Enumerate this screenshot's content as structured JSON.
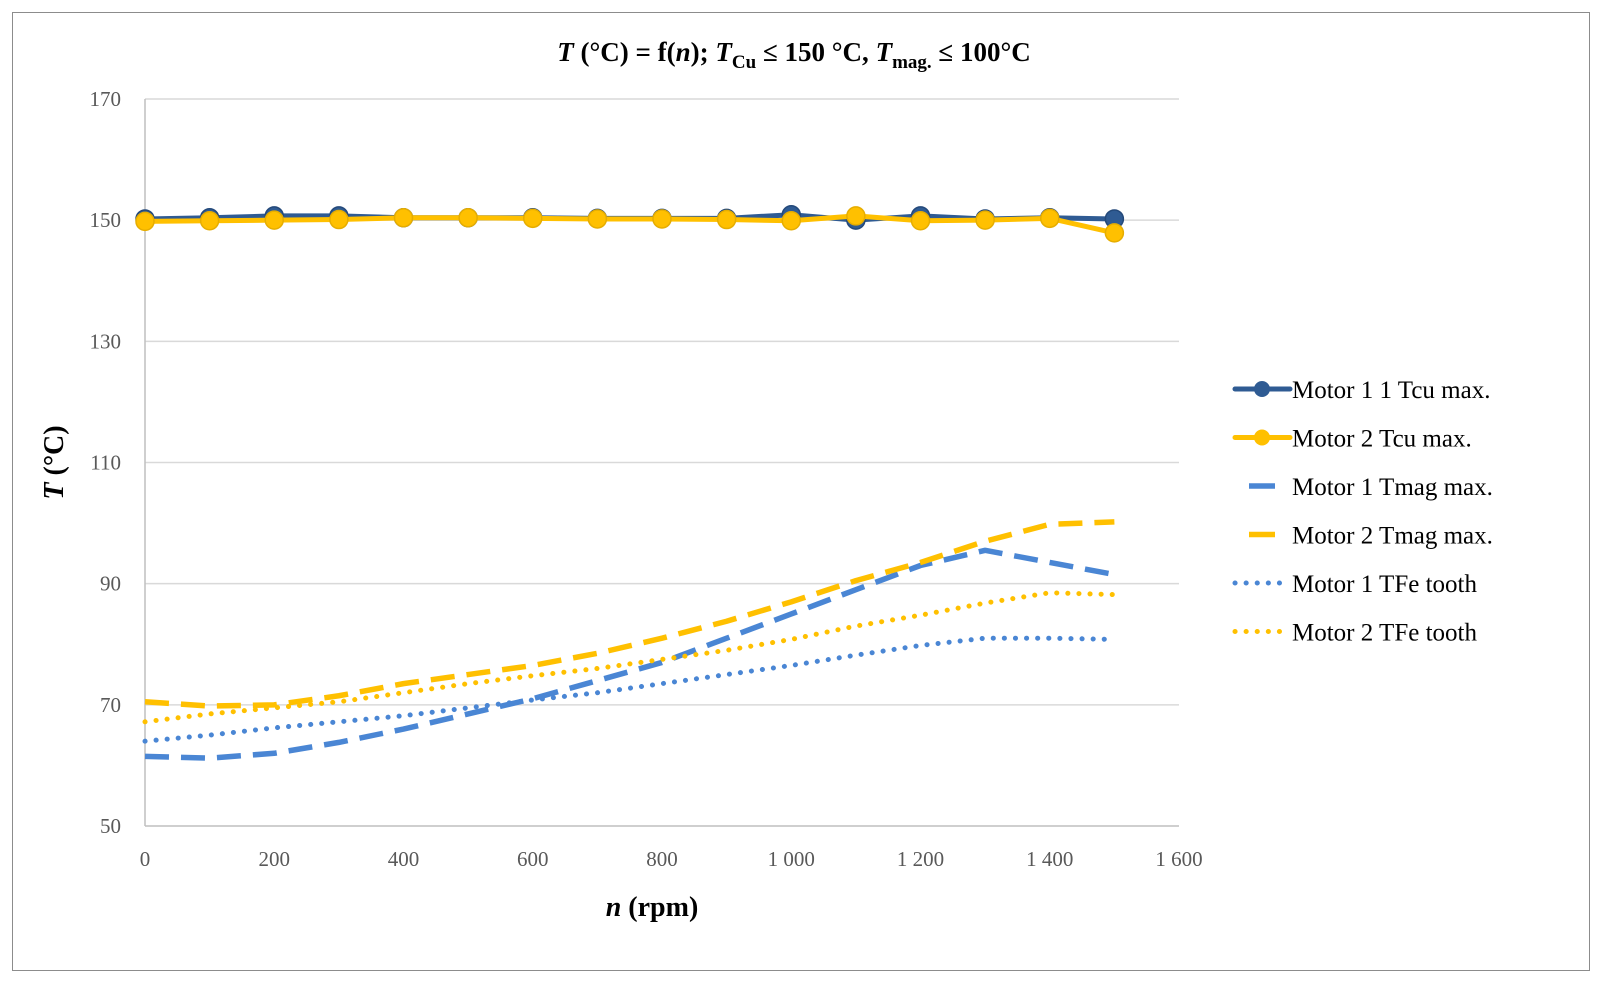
{
  "chart_data": {
    "type": "line",
    "title": {
      "parts": [
        {
          "text": "T",
          "italic": true,
          "sub": false
        },
        {
          "text": " (°C) = f(",
          "italic": false,
          "sub": false
        },
        {
          "text": "n",
          "italic": true,
          "sub": false
        },
        {
          "text": ");   ",
          "italic": false,
          "sub": false
        },
        {
          "text": "T",
          "italic": true,
          "sub": false
        },
        {
          "text": "Cu",
          "italic": false,
          "sub": true
        },
        {
          "text": " ≤ 150 °C, ",
          "italic": false,
          "sub": false
        },
        {
          "text": "T",
          "italic": true,
          "sub": false
        },
        {
          "text": "mag.",
          "italic": false,
          "sub": true
        },
        {
          "text": " ≤ 100°C",
          "italic": false,
          "sub": false
        }
      ]
    },
    "xlabel": {
      "var": "n",
      "unit": " (rpm)"
    },
    "ylabel": {
      "var": "T",
      "unit": " (°C)"
    },
    "xlim": [
      0,
      1600
    ],
    "ylim": [
      50,
      170
    ],
    "x_ticks": [
      0,
      200,
      400,
      600,
      800,
      1000,
      1200,
      1400,
      1600
    ],
    "x_tick_labels": [
      "0",
      "200",
      "400",
      "600",
      "800",
      "1 000",
      "1 200",
      "1 400",
      "1 600"
    ],
    "y_ticks": [
      50,
      70,
      90,
      110,
      130,
      150,
      170
    ],
    "y_tick_labels": [
      "50",
      "70",
      "90",
      "110",
      "130",
      "150",
      "170"
    ],
    "grid": "horizontal",
    "legend_position": "right",
    "series": [
      {
        "name": "Motor 1 1 Tcu max.",
        "style": "solid-marker",
        "color": "#2f5b93",
        "x": [
          0,
          100,
          200,
          300,
          400,
          500,
          600,
          700,
          800,
          900,
          1000,
          1100,
          1200,
          1300,
          1400,
          1500
        ],
        "y": [
          150.2,
          150.4,
          150.7,
          150.7,
          150.4,
          150.4,
          150.4,
          150.3,
          150.3,
          150.3,
          150.9,
          150.0,
          150.7,
          150.2,
          150.4,
          150.2
        ]
      },
      {
        "name": "Motor 2 Tcu max.",
        "style": "solid-marker",
        "color": "#ffc000",
        "x": [
          0,
          100,
          200,
          300,
          400,
          500,
          600,
          700,
          800,
          900,
          1000,
          1100,
          1200,
          1300,
          1400,
          1500
        ],
        "y": [
          149.8,
          149.9,
          150.0,
          150.1,
          150.4,
          150.4,
          150.3,
          150.2,
          150.2,
          150.1,
          149.9,
          150.7,
          149.9,
          150.0,
          150.3,
          147.9
        ]
      },
      {
        "name": "Motor 1 Tmag max.",
        "style": "dash",
        "color": "#4a86d4",
        "x": [
          0,
          100,
          200,
          300,
          400,
          500,
          600,
          700,
          800,
          900,
          1000,
          1100,
          1200,
          1300,
          1400,
          1500
        ],
        "y": [
          61.5,
          61.2,
          62.0,
          63.8,
          66.0,
          68.5,
          71.0,
          74.0,
          77.0,
          81.0,
          85.0,
          89.0,
          93.0,
          95.5,
          93.5,
          91.5
        ]
      },
      {
        "name": "Motor 2 Tmag max.",
        "style": "dash",
        "color": "#ffc000",
        "x": [
          0,
          100,
          200,
          300,
          400,
          500,
          600,
          700,
          800,
          900,
          1000,
          1100,
          1200,
          1300,
          1400,
          1500
        ],
        "y": [
          70.5,
          69.8,
          70.0,
          71.5,
          73.5,
          75.0,
          76.5,
          78.5,
          81.0,
          83.8,
          87.0,
          90.5,
          93.5,
          97.0,
          99.8,
          100.2
        ]
      },
      {
        "name": "Motor 1 TFe tooth",
        "style": "dot",
        "color": "#4a86d4",
        "x": [
          0,
          100,
          200,
          300,
          400,
          500,
          600,
          700,
          800,
          900,
          1000,
          1100,
          1200,
          1300,
          1400,
          1500
        ],
        "y": [
          64.0,
          65.0,
          66.2,
          67.2,
          68.2,
          69.5,
          70.8,
          72.0,
          73.5,
          75.0,
          76.5,
          78.2,
          79.8,
          81.0,
          81.0,
          80.8
        ]
      },
      {
        "name": "Motor 2 TFe tooth",
        "style": "dot",
        "color": "#ffc000",
        "x": [
          0,
          100,
          200,
          300,
          400,
          500,
          600,
          700,
          800,
          900,
          1000,
          1100,
          1200,
          1300,
          1400,
          1500
        ],
        "y": [
          67.2,
          68.5,
          69.5,
          70.5,
          72.0,
          73.5,
          74.8,
          76.0,
          77.5,
          79.0,
          80.8,
          83.0,
          84.8,
          86.8,
          88.5,
          88.2
        ]
      }
    ]
  }
}
